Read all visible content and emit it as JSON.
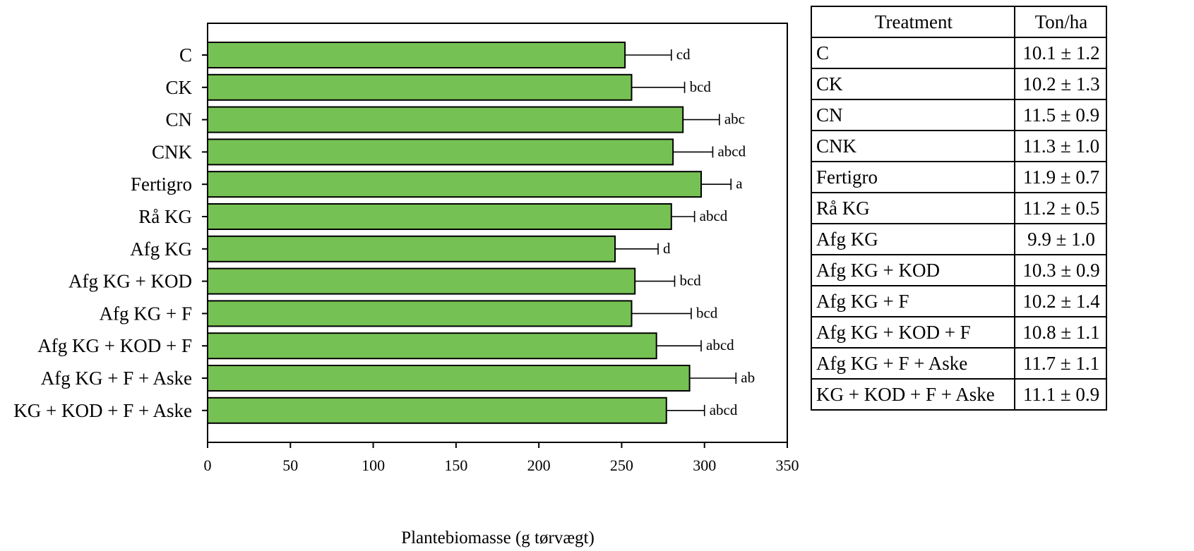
{
  "chart_data": {
    "type": "bar",
    "orientation": "horizontal",
    "categories": [
      "C",
      "CK",
      "CN",
      "CNK",
      "Fertigro",
      "Rå KG",
      "Afg KG",
      "Afg KG + KOD",
      "Afg KG + F",
      "Afg KG + KOD + F",
      "Afg KG + F + Aske",
      "KG + KOD + F + Aske"
    ],
    "values": [
      252,
      256,
      287,
      281,
      298,
      280,
      246,
      258,
      256,
      271,
      291,
      277
    ],
    "error": [
      28,
      32,
      22,
      24,
      18,
      14,
      26,
      24,
      36,
      27,
      28,
      23
    ],
    "significance_letters": [
      "cd",
      "bcd",
      "abc",
      "abcd",
      "a",
      "abcd",
      "d",
      "bcd",
      "bcd",
      "abcd",
      "ab",
      "abcd"
    ],
    "xlabel": "Plantebiomasse (g  tørvægt)",
    "ylabel": "",
    "xlim": [
      0,
      350
    ],
    "xticks": [
      "0",
      "50",
      "100",
      "150",
      "200",
      "250",
      "300",
      "350"
    ],
    "bar_color": "#76c153",
    "grid": false,
    "legend": "none"
  },
  "table": {
    "headers": [
      "Treatment",
      "Ton/ha"
    ],
    "rows": [
      [
        "C",
        "10.1 ± 1.2"
      ],
      [
        "CK",
        "10.2 ± 1.3"
      ],
      [
        "CN",
        "11.5 ± 0.9"
      ],
      [
        "CNK",
        "11.3 ± 1.0"
      ],
      [
        "Fertigro",
        "11.9 ± 0.7"
      ],
      [
        "Rå KG",
        "11.2 ± 0.5"
      ],
      [
        "Afg KG",
        "9.9 ± 1.0"
      ],
      [
        "Afg KG + KOD",
        "10.3 ± 0.9"
      ],
      [
        "Afg KG + F",
        "10.2 ± 1.4"
      ],
      [
        "Afg KG + KOD + F",
        "10.8 ± 1.1"
      ],
      [
        "Afg KG + F + Aske",
        "11.7 ± 1.1"
      ],
      [
        "KG + KOD + F + Aske",
        "11.1 ± 0.9"
      ]
    ]
  }
}
